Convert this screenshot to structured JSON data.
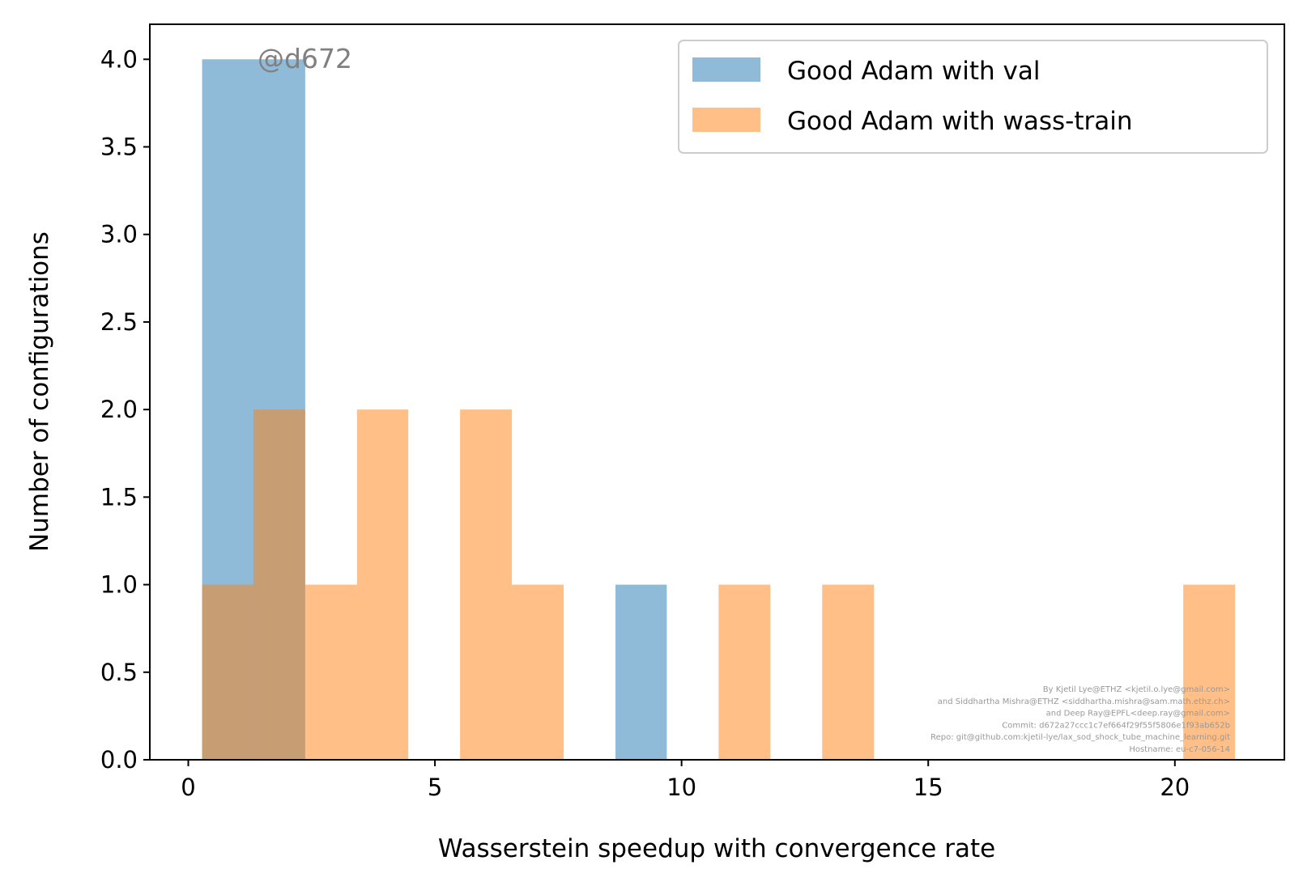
{
  "chart_data": {
    "type": "bar",
    "title": "",
    "xlabel": "Wasserstein speedup with convergence rate",
    "ylabel": "Number of configurations",
    "xlim": [
      -0.78,
      22.22
    ],
    "ylim": [
      0,
      4.2
    ],
    "xticks": [
      0,
      5,
      10,
      15,
      20
    ],
    "xtick_labels": [
      "0",
      "5",
      "10",
      "15",
      "20"
    ],
    "yticks": [
      0,
      0.5,
      1,
      1.5,
      2,
      2.5,
      3,
      3.5,
      4
    ],
    "ytick_labels": [
      "0.0",
      "0.5",
      "1.0",
      "1.5",
      "2.0",
      "2.5",
      "3.0",
      "3.5",
      "4.0"
    ],
    "grid": false,
    "legend_position": "top-right",
    "series": [
      {
        "name": "Good Adam with val",
        "color": "#1f77b4",
        "opacity": 0.5,
        "bins": [
          {
            "x0": 0.28,
            "x1": 2.37,
            "count": 4
          },
          {
            "x0": 8.66,
            "x1": 9.7,
            "count": 1
          }
        ]
      },
      {
        "name": "Good Adam with wass-train",
        "color": "#ff7f0e",
        "opacity": 0.5,
        "bins": [
          {
            "x0": 0.28,
            "x1": 1.32,
            "count": 1
          },
          {
            "x0": 1.32,
            "x1": 2.37,
            "count": 2
          },
          {
            "x0": 2.37,
            "x1": 3.42,
            "count": 1
          },
          {
            "x0": 3.42,
            "x1": 4.46,
            "count": 2
          },
          {
            "x0": 5.51,
            "x1": 6.56,
            "count": 2
          },
          {
            "x0": 6.56,
            "x1": 7.61,
            "count": 1
          },
          {
            "x0": 10.75,
            "x1": 11.8,
            "count": 1
          },
          {
            "x0": 12.85,
            "x1": 13.9,
            "count": 1
          },
          {
            "x0": 20.17,
            "x1": 21.22,
            "count": 1
          }
        ]
      }
    ]
  },
  "watermark": "@d672",
  "credits": [
    "By Kjetil Lye@ETHZ <kjetil.o.lye@gmail.com>",
    "and Siddhartha Mishra@ETHZ <siddhartha.mishra@sam.math.ethz.ch>",
    "and Deep Ray@EPFL<deep.ray@gmail.com>",
    "Commit: d672a27ccc1c7ef664f29f55f5806e1f93ab652b",
    "Repo: git@github.com:kjetil-lye/lax_sod_shock_tube_machine_learning.git",
    "Hostname: eu-c7-056-14"
  ]
}
